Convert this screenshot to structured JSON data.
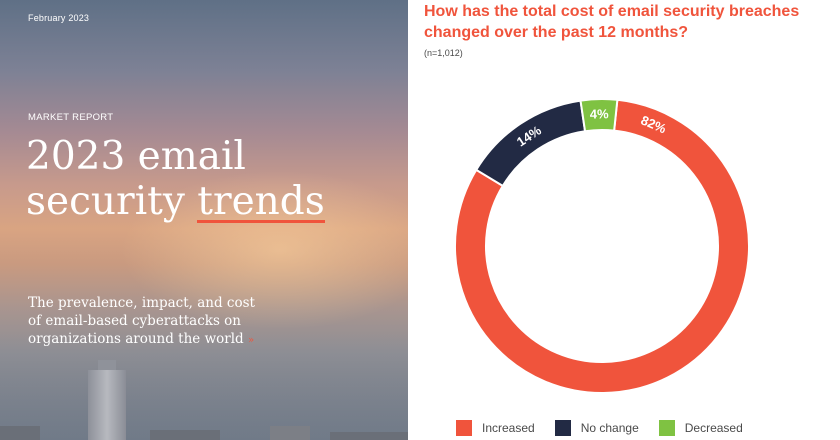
{
  "cover": {
    "date": "February 2023",
    "kicker": "MARKET REPORT",
    "headline_line1": "2023 email",
    "headline_line2a": "security ",
    "headline_line2b": "trends",
    "tagline": "The prevalence, impact, and cost of email-based cyberattacks on organizations around the world",
    "tagline_marker": "»"
  },
  "chart": {
    "title": "How has the total cost of email security breaches changed over the past 12 months?",
    "subtitle": "(n=1,012)"
  },
  "colors": {
    "increased": "#f0543c",
    "no_change": "#222a44",
    "decreased": "#7fc242"
  },
  "chart_data": {
    "type": "pie",
    "variant": "donut",
    "categories": [
      "Increased",
      "No change",
      "Decreased"
    ],
    "values": [
      82,
      14,
      4
    ],
    "value_labels": [
      "82%",
      "14%",
      "4%"
    ],
    "title": "How has the total cost of email security breaches changed over the past 12 months?",
    "subtitle": "(n=1,012)",
    "legend_position": "bottom"
  },
  "legend": [
    {
      "label": "Increased",
      "color_key": "increased"
    },
    {
      "label": "No change",
      "color_key": "no_change"
    },
    {
      "label": "Decreased",
      "color_key": "decreased"
    }
  ]
}
